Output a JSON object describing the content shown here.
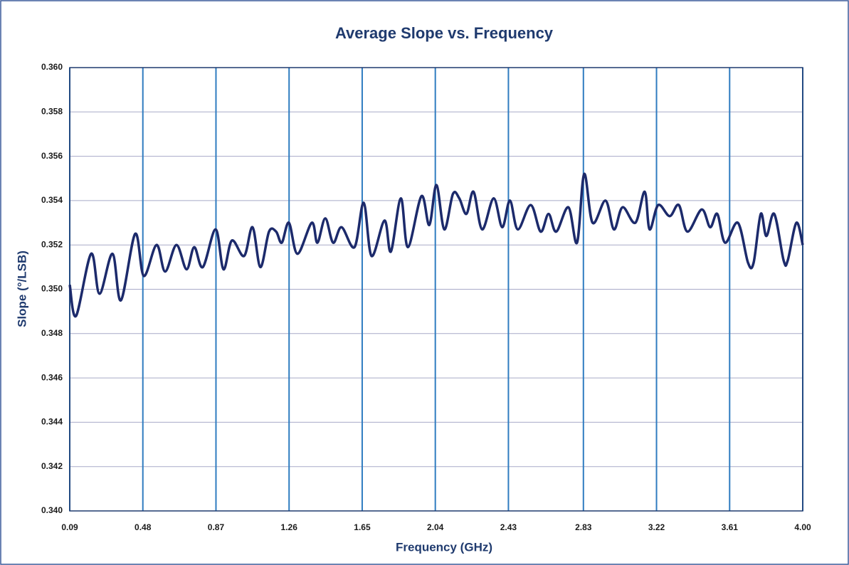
{
  "chart_data": {
    "type": "line",
    "title": "Average Slope vs. Frequency",
    "xlabel": "Frequency (GHz)",
    "ylabel": "Slope (°/LSB)",
    "xlim": [
      0.09,
      4
    ],
    "ylim": [
      0.34,
      0.36
    ],
    "xticks": [
      0.09,
      0.48,
      0.87,
      1.26,
      1.65,
      2.04,
      2.43,
      2.83,
      3.22,
      3.61,
      {
        "value": 4,
        "label": "4.00"
      }
    ],
    "yticks": [
      {
        "value": 0.34,
        "label": "0.340"
      },
      0.342,
      0.344,
      0.346,
      0.348,
      {
        "value": 0.35,
        "label": "0.350"
      },
      0.352,
      0.354,
      0.356,
      0.358,
      {
        "value": 0.36,
        "label": "0.360"
      }
    ],
    "grid": true,
    "x": [
      0.09,
      0.124,
      0.204,
      0.249,
      0.318,
      0.363,
      0.439,
      0.485,
      0.553,
      0.599,
      0.659,
      0.713,
      0.754,
      0.8,
      0.868,
      0.91,
      0.955,
      1.02,
      1.065,
      1.107,
      1.153,
      1.191,
      1.221,
      1.259,
      1.305,
      1.381,
      1.411,
      1.453,
      1.495,
      1.54,
      1.609,
      1.658,
      1.7,
      1.769,
      1.803,
      1.856,
      1.894,
      1.966,
      2.008,
      2.046,
      2.088,
      2.134,
      2.168,
      2.206,
      2.244,
      2.29,
      2.351,
      2.397,
      2.438,
      2.48,
      2.549,
      2.602,
      2.644,
      2.685,
      2.75,
      2.796,
      2.834,
      2.879,
      2.948,
      2.993,
      3.039,
      3.107,
      3.157,
      3.183,
      3.229,
      3.29,
      3.339,
      3.385,
      3.461,
      3.506,
      3.544,
      3.586,
      3.654,
      3.708,
      3.738,
      3.776,
      3.806,
      3.848,
      3.898,
      3.92,
      3.966,
      4
    ],
    "series": [
      {
        "name": "Average Slope",
        "color": "#1c2a6b",
        "values": [
          0.3502,
          0.3488,
          0.3516,
          0.3498,
          0.3516,
          0.3495,
          0.3525,
          0.3506,
          0.352,
          0.3508,
          0.352,
          0.3509,
          0.3519,
          0.351,
          0.3527,
          0.3509,
          0.3522,
          0.3515,
          0.3528,
          0.351,
          0.3526,
          0.3526,
          0.3521,
          0.353,
          0.3516,
          0.353,
          0.3521,
          0.3532,
          0.3521,
          0.3528,
          0.3519,
          0.3539,
          0.3515,
          0.3531,
          0.3517,
          0.3541,
          0.3519,
          0.3542,
          0.3529,
          0.3547,
          0.3527,
          0.3543,
          0.3541,
          0.3534,
          0.3544,
          0.3527,
          0.3541,
          0.3528,
          0.354,
          0.3527,
          0.3538,
          0.3526,
          0.3534,
          0.3526,
          0.3537,
          0.3521,
          0.3552,
          0.353,
          0.354,
          0.3527,
          0.3537,
          0.353,
          0.3544,
          0.3527,
          0.3538,
          0.3533,
          0.3538,
          0.3526,
          0.3536,
          0.3528,
          0.3534,
          0.3521,
          0.353,
          0.3512,
          0.3512,
          0.3534,
          0.3524,
          0.3534,
          0.3513,
          0.3513,
          0.353,
          0.352
        ]
      }
    ]
  }
}
